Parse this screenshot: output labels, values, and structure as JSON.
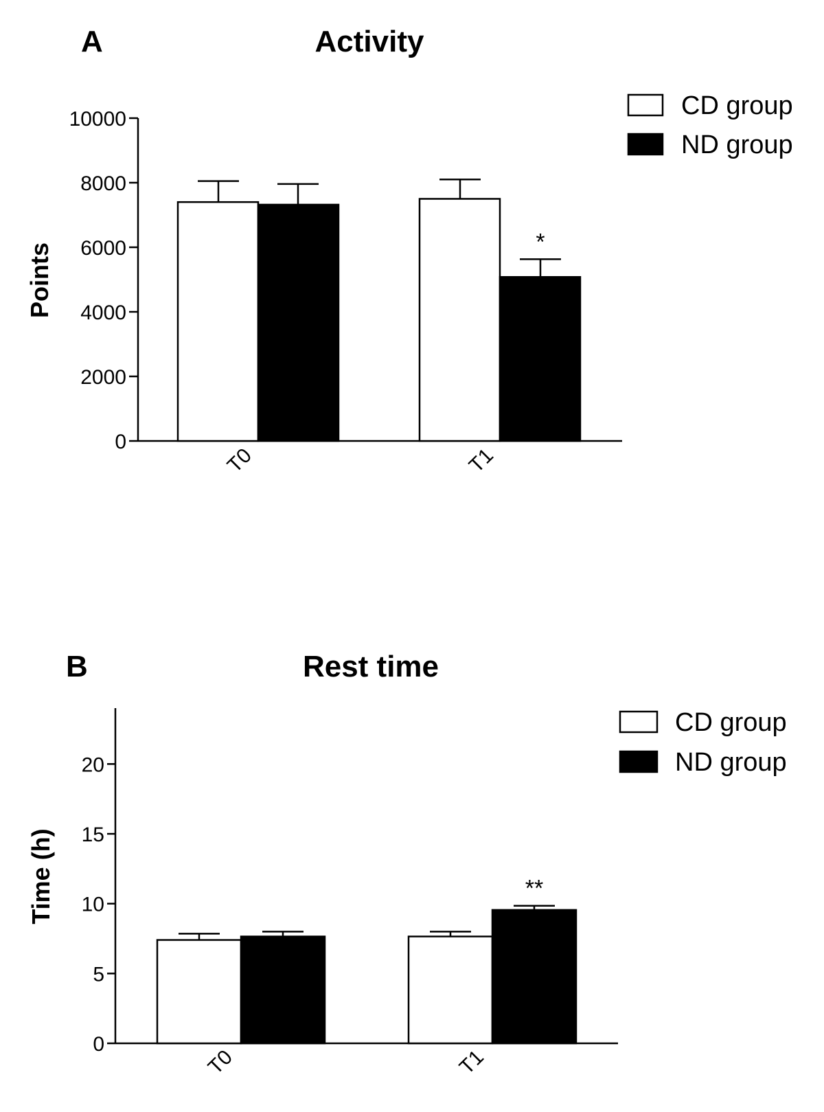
{
  "chart_data": [
    {
      "panel_letter": "A",
      "type": "bar",
      "title": "Activity",
      "xlabel": "",
      "ylabel": "Points",
      "ylim": [
        0,
        10000
      ],
      "yticks": [
        0,
        2000,
        4000,
        6000,
        8000,
        10000
      ],
      "ytick_labels": [
        "0",
        "2000",
        "4000",
        "6000",
        "8000",
        "10000"
      ],
      "categories": [
        "T0",
        "T1"
      ],
      "series": [
        {
          "name": "CD group",
          "color": "#ffffff",
          "values": [
            7400,
            7500
          ],
          "errors": [
            650,
            600
          ]
        },
        {
          "name": "ND group",
          "color": "#000000",
          "values": [
            7320,
            5080
          ],
          "errors": [
            640,
            550
          ]
        }
      ],
      "annotations": [
        {
          "category": "T1",
          "series": "ND group",
          "text": "*"
        }
      ],
      "legend": "top-right"
    },
    {
      "panel_letter": "B",
      "type": "bar",
      "title": "Rest time",
      "xlabel": "",
      "ylabel": "Time (h)",
      "ylim": [
        0,
        24
      ],
      "yticks": [
        0,
        5,
        10,
        15,
        20
      ],
      "ytick_labels": [
        "0",
        "5",
        "10",
        "15",
        "20"
      ],
      "categories": [
        "T0",
        "T1"
      ],
      "series": [
        {
          "name": "CD group",
          "color": "#ffffff",
          "values": [
            7.4,
            7.65
          ],
          "errors": [
            0.45,
            0.35
          ]
        },
        {
          "name": "ND group",
          "color": "#000000",
          "values": [
            7.65,
            9.55
          ],
          "errors": [
            0.35,
            0.3
          ]
        }
      ],
      "annotations": [
        {
          "category": "T1",
          "series": "ND group",
          "text": "**"
        }
      ],
      "legend": "top-right"
    }
  ]
}
